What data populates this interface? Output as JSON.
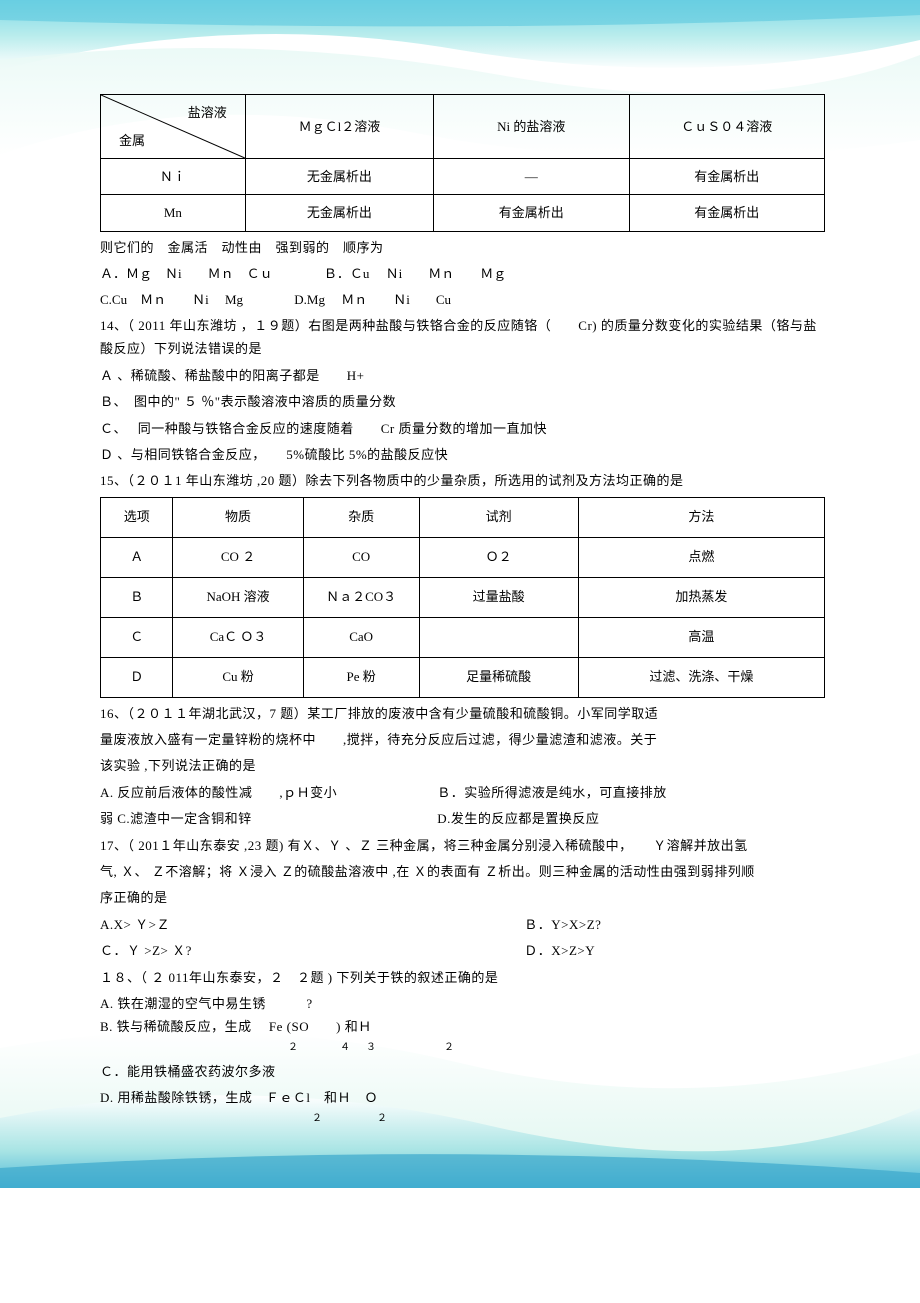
{
  "waves": {
    "top_gradient_start": "#7dd8e8",
    "top_gradient_mid": "#b8ecec",
    "top_gradient_end": "#e8f9f5",
    "bottom_gradient_start": "#4db8d8",
    "bottom_gradient_mid": "#8dd8e0",
    "bottom_gradient_end": "#d8f4ec"
  },
  "table1": {
    "diag_top": "盐溶液",
    "diag_bottom": "金属",
    "col_headers": [
      "ＭｇＣl２溶液",
      "Ni 的盐溶液",
      "ＣｕＳ０４溶液"
    ],
    "rows": [
      {
        "metal": "Ｎｉ",
        "cells": [
          "无金属析出",
          "—",
          "有金属析出"
        ]
      },
      {
        "metal": "Mn",
        "cells": [
          "无金属析出",
          "有金属析出",
          "有金属析出"
        ]
      }
    ],
    "col_widths": [
      "20%",
      "26%",
      "27%",
      "27%"
    ]
  },
  "q13": {
    "stem": "则它们的　金属活　动性由　强到弱的　顺序为",
    "optA": "Ａ．Ｍｇ　Ｎi　　Ｍｎ　Ｃｕ",
    "optB": "Ｂ．Ｃu　 Ｎi　　Ｍｎ　　Ｍｇ",
    "optC": "C.Cu　Ｍｎ　　Ｎi　 Mg",
    "optD": "D.Mg　 Ｍｎ　　Ｎi　　Cu"
  },
  "q14": {
    "stem": "14、（ 2011 年山东潍坊 ，１９题）右图是两种盐酸与铁铬合金的反应随铬（　　Cr) 的质量分数变化的实验结果（铬与盐酸反应）下列说法错误的是",
    "A": "Ａ 、稀硫酸、稀盐酸中的阳离子都是　　H+",
    "B": "Ｂ、　图中的\" ５ ％\"表示酸溶液中溶质的质量分数",
    "C": "Ｃ、　 同一种酸与铁铬合金反应的速度随着　　Cr 质量分数的增加一直加快",
    "D": "Ｄ 、与相同铁铬合金反应，　　5%硫酸比  5%的盐酸反应快"
  },
  "q15": {
    "stem": "15、（２０１1 年山东潍坊 ,20 题）除去下列各物质中的少量杂质，所选用的试剂及方法均正确的是",
    "columns": [
      "选项",
      "物质",
      "杂质",
      "试剂",
      "方法"
    ],
    "rows": [
      [
        "Ａ",
        "CO ２",
        "CO",
        "Ｏ２",
        "点燃"
      ],
      [
        "Ｂ",
        "NaOH  溶液",
        "Ｎａ２CO３",
        "过量盐酸",
        "加热蒸发"
      ],
      [
        "Ｃ",
        "CaＣ Ｏ３",
        "CaO",
        "",
        "高温"
      ],
      [
        "Ｄ",
        "Cu 粉",
        "Pe 粉",
        "足量稀硫酸",
        "过滤、洗涤、干燥"
      ]
    ],
    "col_widths": [
      "10%",
      "18%",
      "16%",
      "22%",
      "34%"
    ]
  },
  "q16": {
    "line1": "16、（２０１１年湖北武汉，7 题）某工厂排放的废液中含有少量硫酸和硫酸铜。小军同学取适",
    "line2": "量废液放入盛有一定量锌粉的烧杯中　　,搅拌，待充分反应后过滤，得少量滤渣和滤液。关于",
    "line3": "该实验 ,下列说法正确的是",
    "optA": "A. 反应前后液体的酸性减　　,ｐＨ变小",
    "optB": "Ｂ．实验所得滤液是纯水，可直接排放",
    "optC_pre": "弱 C.滤渣中一定含铜和锌",
    "optD": "D.发生的反应都是置换反应"
  },
  "q17": {
    "line1": "17、（ 201１年山东泰安  ,23  题)  有Ｘ、Ｙ 、Ｚ 三种金属，将三种金属分别浸入稀硫酸中，　　Ｙ溶解并放出氢",
    "line2": "气, Ｘ、 Ｚ不溶解；将 Ｘ浸入 Ｚ的硫酸盐溶液中 ,在 Ｘ的表面有 Ｚ析出。则三种金属的活动性由强到弱排列顺",
    "line3": "序正确的是",
    "optA": "A.X> Ｙ>Ｚ",
    "optB": "Ｂ．Y>X>Z?",
    "optC": "Ｃ．Ｙ >Z> Ｘ?",
    "optD": "Ｄ．X>Z>Y"
  },
  "q18": {
    "stem": "１８、（ ２ 011年山东泰安，２　２题 ) 下列关于铁的叙述正确的是",
    "A": "A. 铁在潮湿的空气中易生锈　　　?",
    "B_main": "B. 铁与稀硫酸反应，生成　 Fe (SO　　) 和Ｈ",
    "B_sub": "２　　　４　３　　　　　２",
    "C": "Ｃ．能用铁桶盛农药波尔多液",
    "D_main": "D. 用稀盐酸除铁锈，生成　ＦｅＣl　和Ｈ　Ｏ",
    "D_sub": "２　　　　２"
  }
}
